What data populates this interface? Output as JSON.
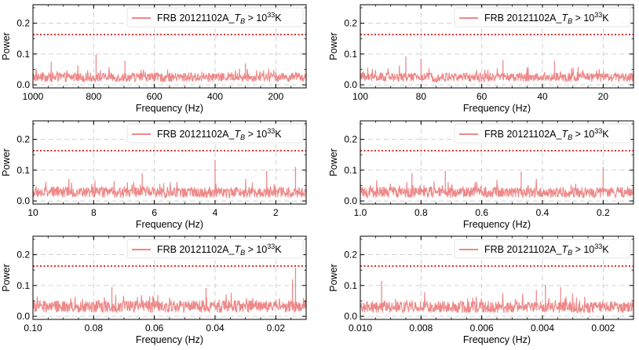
{
  "chart_data": [
    {
      "type": "line",
      "title": "",
      "xlabel": "Frequency (Hz)",
      "ylabel": "Power",
      "xlim": [
        1000,
        100
      ],
      "ylim": [
        -0.01,
        0.26
      ],
      "xticks": [
        1000,
        800,
        600,
        400,
        200
      ],
      "xtick_labels": [
        "1000",
        "800",
        "600",
        "400",
        "200"
      ],
      "yticks": [
        0.0,
        0.1,
        0.2
      ],
      "ytick_labels": [
        "0.0",
        "0.1",
        "0.2"
      ],
      "threshold": 0.163,
      "legend": {
        "label": "FRB 20121102A_",
        "sym": "T",
        "sub": "B",
        "rel": " > 10",
        "sup": "33",
        "unit": "K",
        "placement": "top-right"
      },
      "grid": true,
      "series_color": "#ee8888",
      "threshold_color": "#dd2222",
      "noise_mean": 0.026,
      "noise_spread": 0.03,
      "peaks": [
        {
          "x": 792,
          "y": 0.098
        },
        {
          "x": 697,
          "y": 0.078
        },
        {
          "x": 940,
          "y": 0.075
        },
        {
          "x": 300,
          "y": 0.07
        }
      ]
    },
    {
      "type": "line",
      "title": "",
      "xlabel": "Frequency (Hz)",
      "ylabel": "Power",
      "xlim": [
        100,
        10
      ],
      "ylim": [
        -0.01,
        0.26
      ],
      "xticks": [
        100,
        80,
        60,
        40,
        20
      ],
      "xtick_labels": [
        "100",
        "80",
        "60",
        "40",
        "20"
      ],
      "yticks": [
        0.0,
        0.1,
        0.2
      ],
      "ytick_labels": [
        "0.0",
        "0.1",
        "0.2"
      ],
      "threshold": 0.163,
      "legend": {
        "label": "FRB 20121102A_",
        "sym": "T",
        "sub": "B",
        "rel": " > 10",
        "sup": "33",
        "unit": "K",
        "placement": "top-right"
      },
      "grid": true,
      "series_color": "#ee8888",
      "threshold_color": "#dd2222",
      "noise_mean": 0.026,
      "noise_spread": 0.03,
      "peaks": [
        {
          "x": 85,
          "y": 0.092
        },
        {
          "x": 80,
          "y": 0.085
        },
        {
          "x": 53,
          "y": 0.08
        },
        {
          "x": 36,
          "y": 0.078
        }
      ]
    },
    {
      "type": "line",
      "title": "",
      "xlabel": "Frequency (Hz)",
      "ylabel": "Power",
      "xlim": [
        10,
        1
      ],
      "ylim": [
        -0.01,
        0.26
      ],
      "xticks": [
        10,
        8,
        6,
        4,
        2
      ],
      "xtick_labels": [
        "10",
        "8",
        "6",
        "4",
        "2"
      ],
      "yticks": [
        0.0,
        0.1,
        0.2
      ],
      "ytick_labels": [
        "0.0",
        "0.1",
        "0.2"
      ],
      "threshold": 0.163,
      "legend": {
        "label": "FRB 20121102A_",
        "sym": "T",
        "sub": "B",
        "rel": " > 10",
        "sup": "33",
        "unit": "K",
        "placement": "top-right"
      },
      "grid": true,
      "series_color": "#ee8888",
      "threshold_color": "#dd2222",
      "noise_mean": 0.03,
      "noise_spread": 0.035,
      "peaks": [
        {
          "x": 4.0,
          "y": 0.133
        },
        {
          "x": 1.35,
          "y": 0.11
        },
        {
          "x": 2.3,
          "y": 0.098
        },
        {
          "x": 6.4,
          "y": 0.09
        }
      ]
    },
    {
      "type": "line",
      "title": "",
      "xlabel": "Frequency (Hz)",
      "ylabel": "Power",
      "xlim": [
        1.0,
        0.1
      ],
      "ylim": [
        -0.01,
        0.26
      ],
      "xticks": [
        1.0,
        0.8,
        0.6,
        0.4,
        0.2
      ],
      "xtick_labels": [
        "1.0",
        "0.8",
        "0.6",
        "0.4",
        "0.2"
      ],
      "yticks": [
        0.0,
        0.1,
        0.2
      ],
      "ytick_labels": [
        "0.0",
        "0.1",
        "0.2"
      ],
      "threshold": 0.163,
      "legend": {
        "label": "FRB 20121102A_",
        "sym": "T",
        "sub": "B",
        "rel": " > 10",
        "sup": "33",
        "unit": "K",
        "placement": "top-right"
      },
      "grid": true,
      "series_color": "#ee8888",
      "threshold_color": "#dd2222",
      "noise_mean": 0.03,
      "noise_spread": 0.035,
      "peaks": [
        {
          "x": 0.2,
          "y": 0.11
        },
        {
          "x": 0.72,
          "y": 0.098
        },
        {
          "x": 0.47,
          "y": 0.095
        },
        {
          "x": 0.83,
          "y": 0.09
        }
      ]
    },
    {
      "type": "line",
      "title": "",
      "xlabel": "Frequency (Hz)",
      "ylabel": "Power",
      "xlim": [
        0.1,
        0.01
      ],
      "ylim": [
        -0.01,
        0.26
      ],
      "xticks": [
        0.1,
        0.08,
        0.06,
        0.04,
        0.02
      ],
      "xtick_labels": [
        "0.10",
        "0.08",
        "0.06",
        "0.04",
        "0.02"
      ],
      "yticks": [
        0.0,
        0.1,
        0.2
      ],
      "ytick_labels": [
        "0.0",
        "0.1",
        "0.2"
      ],
      "threshold": 0.163,
      "legend": {
        "label": "FRB 20121102A_",
        "sym": "T",
        "sub": "B",
        "rel": " > 10",
        "sup": "33",
        "unit": "K",
        "placement": "top-right"
      },
      "grid": true,
      "series_color": "#ee8888",
      "threshold_color": "#dd2222",
      "noise_mean": 0.034,
      "noise_spread": 0.04,
      "peaks": [
        {
          "x": 0.0135,
          "y": 0.158
        },
        {
          "x": 0.0145,
          "y": 0.12
        },
        {
          "x": 0.074,
          "y": 0.095
        },
        {
          "x": 0.043,
          "y": 0.092
        }
      ]
    },
    {
      "type": "line",
      "title": "",
      "xlabel": "Frequency (Hz)",
      "ylabel": "Power",
      "xlim": [
        0.01,
        0.001
      ],
      "ylim": [
        -0.01,
        0.26
      ],
      "xticks": [
        0.01,
        0.008,
        0.006,
        0.004,
        0.002
      ],
      "xtick_labels": [
        "0.010",
        "0.008",
        "0.006",
        "0.004",
        "0.002"
      ],
      "yticks": [
        0.0,
        0.1,
        0.2
      ],
      "ytick_labels": [
        "0.0",
        "0.1",
        "0.2"
      ],
      "threshold": 0.163,
      "legend": {
        "label": "FRB 20121102A_",
        "sym": "T",
        "sub": "B",
        "rel": " > 10",
        "sup": "33",
        "unit": "K",
        "placement": "top-right"
      },
      "grid": true,
      "series_color": "#ee8888",
      "threshold_color": "#dd2222",
      "noise_mean": 0.032,
      "noise_spread": 0.038,
      "peaks": [
        {
          "x": 0.0093,
          "y": 0.115
        },
        {
          "x": 0.0039,
          "y": 0.102
        },
        {
          "x": 0.0034,
          "y": 0.095
        },
        {
          "x": 0.0042,
          "y": 0.085
        }
      ]
    }
  ]
}
